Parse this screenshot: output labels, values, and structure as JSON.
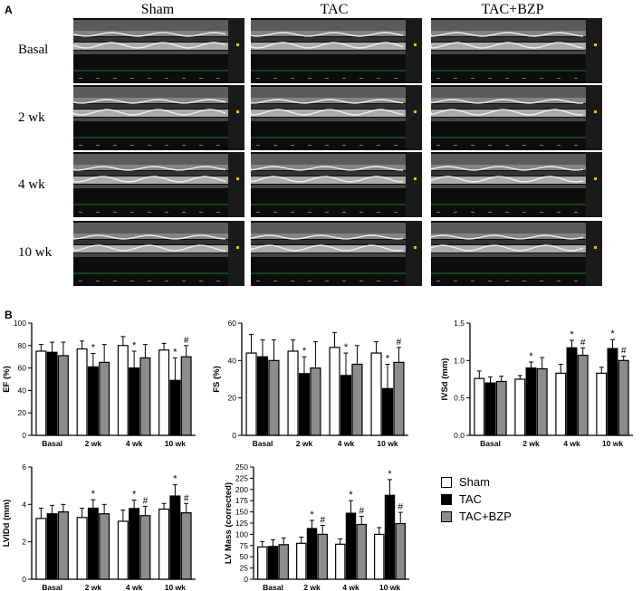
{
  "panel_a_label": "A",
  "panel_b_label": "B",
  "echo_columns": [
    "Sham",
    "TAC",
    "TAC+BZP"
  ],
  "echo_rows": [
    "Basal",
    "2 wk",
    "4 wk",
    "10 wk"
  ],
  "colors": {
    "sham": "#ffffff",
    "tac": "#000000",
    "tac_bzp": "#8c8c8c"
  },
  "legend": [
    {
      "label": "Sham",
      "color": "#ffffff"
    },
    {
      "label": "TAC",
      "color": "#000000"
    },
    {
      "label": "TAC+BZP",
      "color": "#8c8c8c"
    }
  ],
  "chart_data": [
    {
      "type": "bar",
      "ylabel": "EF (%)",
      "ylim": [
        0,
        100
      ],
      "yticks": [
        0,
        20,
        40,
        60,
        80,
        100
      ],
      "categories": [
        "Basal",
        "2 wk",
        "4 wk",
        "10 wk"
      ],
      "series": [
        {
          "name": "Sham",
          "values": [
            75,
            77,
            80,
            76
          ],
          "errors": [
            6,
            7,
            8,
            6
          ]
        },
        {
          "name": "TAC",
          "values": [
            74,
            61,
            60,
            49
          ],
          "errors": [
            9,
            12,
            15,
            20
          ]
        },
        {
          "name": "TAC+BZP",
          "values": [
            71,
            65,
            69,
            70
          ],
          "errors": [
            12,
            16,
            12,
            10
          ]
        }
      ],
      "annotations": [
        {
          "category": 1,
          "series": 1,
          "text": "*"
        },
        {
          "category": 2,
          "series": 1,
          "text": "*"
        },
        {
          "category": 3,
          "series": 1,
          "text": "*"
        },
        {
          "category": 3,
          "series": 2,
          "text": "#"
        }
      ]
    },
    {
      "type": "bar",
      "ylabel": "FS (%)",
      "ylim": [
        0,
        60
      ],
      "yticks": [
        0,
        20,
        40,
        60
      ],
      "categories": [
        "Basal",
        "2 wk",
        "4 wk",
        "10 wk"
      ],
      "series": [
        {
          "name": "Sham",
          "values": [
            44,
            45,
            47,
            44
          ],
          "errors": [
            10,
            6,
            8,
            6
          ]
        },
        {
          "name": "TAC",
          "values": [
            42,
            33,
            32,
            25
          ],
          "errors": [
            9,
            9,
            12,
            13
          ]
        },
        {
          "name": "TAC+BZP",
          "values": [
            40,
            36,
            38,
            39
          ],
          "errors": [
            11,
            14,
            10,
            8
          ]
        }
      ],
      "annotations": [
        {
          "category": 1,
          "series": 1,
          "text": "*"
        },
        {
          "category": 2,
          "series": 1,
          "text": "*"
        },
        {
          "category": 3,
          "series": 1,
          "text": "*"
        },
        {
          "category": 3,
          "series": 2,
          "text": "#"
        }
      ]
    },
    {
      "type": "bar",
      "ylabel": "IVSd (mm)",
      "ylim": [
        0,
        1.5
      ],
      "yticks": [
        0.0,
        0.5,
        1.0,
        1.5
      ],
      "categories": [
        "Basal",
        "2 wk",
        "4 wk",
        "10 wk"
      ],
      "series": [
        {
          "name": "Sham",
          "values": [
            0.76,
            0.75,
            0.83,
            0.83
          ],
          "errors": [
            0.1,
            0.05,
            0.12,
            0.08
          ]
        },
        {
          "name": "TAC",
          "values": [
            0.7,
            0.9,
            1.17,
            1.16
          ],
          "errors": [
            0.08,
            0.08,
            0.1,
            0.12
          ]
        },
        {
          "name": "TAC+BZP",
          "values": [
            0.72,
            0.89,
            1.07,
            1.0
          ],
          "errors": [
            0.07,
            0.15,
            0.1,
            0.06
          ]
        }
      ],
      "annotations": [
        {
          "category": 1,
          "series": 1,
          "text": "*"
        },
        {
          "category": 2,
          "series": 1,
          "text": "*"
        },
        {
          "category": 2,
          "series": 2,
          "text": "#"
        },
        {
          "category": 3,
          "series": 1,
          "text": "*"
        },
        {
          "category": 3,
          "series": 2,
          "text": "#"
        }
      ]
    },
    {
      "type": "bar",
      "ylabel": "LVIDd (mm)",
      "ylim": [
        0,
        6
      ],
      "yticks": [
        0,
        2,
        4,
        6
      ],
      "categories": [
        "Basal",
        "2 wk",
        "4 wk",
        "10 wk"
      ],
      "series": [
        {
          "name": "Sham",
          "values": [
            3.25,
            3.3,
            3.1,
            3.75
          ],
          "errors": [
            0.55,
            0.5,
            0.6,
            0.3
          ]
        },
        {
          "name": "TAC",
          "values": [
            3.5,
            3.8,
            3.78,
            4.45
          ],
          "errors": [
            0.45,
            0.45,
            0.45,
            0.6
          ]
        },
        {
          "name": "TAC+BZP",
          "values": [
            3.6,
            3.5,
            3.4,
            3.55
          ],
          "errors": [
            0.4,
            0.5,
            0.5,
            0.5
          ]
        }
      ],
      "annotations": [
        {
          "category": 1,
          "series": 1,
          "text": "*"
        },
        {
          "category": 2,
          "series": 1,
          "text": "*"
        },
        {
          "category": 2,
          "series": 2,
          "text": "#"
        },
        {
          "category": 3,
          "series": 1,
          "text": "*"
        },
        {
          "category": 3,
          "series": 2,
          "text": "#"
        }
      ]
    },
    {
      "type": "bar",
      "ylabel": "LV Mass (corrected)",
      "ylim": [
        0,
        250
      ],
      "yticks": [
        0,
        25,
        50,
        75,
        100,
        125,
        150,
        175,
        200,
        225,
        250
      ],
      "categories": [
        "Basal",
        "2 wk",
        "4 wk",
        "10 wk"
      ],
      "series": [
        {
          "name": "Sham",
          "values": [
            72,
            80,
            78,
            100
          ],
          "errors": [
            12,
            14,
            12,
            15
          ]
        },
        {
          "name": "TAC",
          "values": [
            73,
            113,
            147,
            187
          ],
          "errors": [
            15,
            18,
            28,
            35
          ]
        },
        {
          "name": "TAC+BZP",
          "values": [
            77,
            100,
            122,
            124
          ],
          "errors": [
            15,
            20,
            18,
            25
          ]
        }
      ],
      "annotations": [
        {
          "category": 1,
          "series": 1,
          "text": "*"
        },
        {
          "category": 1,
          "series": 2,
          "text": "#"
        },
        {
          "category": 2,
          "series": 1,
          "text": "*"
        },
        {
          "category": 2,
          "series": 2,
          "text": "#"
        },
        {
          "category": 3,
          "series": 1,
          "text": "*"
        },
        {
          "category": 3,
          "series": 2,
          "text": "#"
        }
      ]
    }
  ]
}
